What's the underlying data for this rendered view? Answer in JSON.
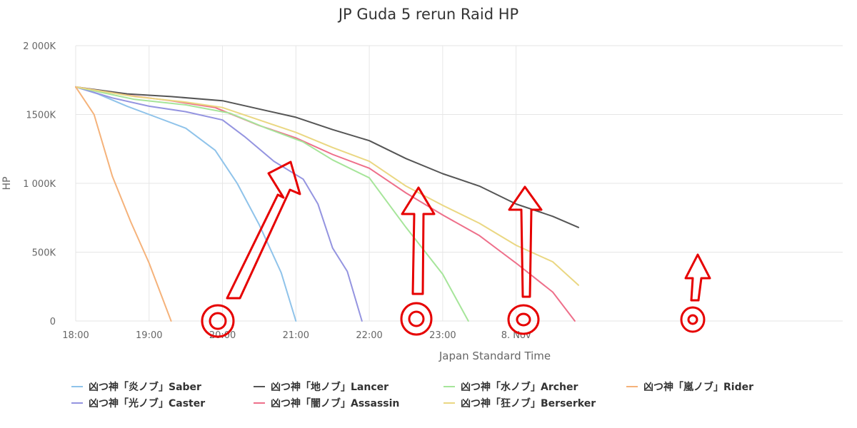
{
  "chart_data": {
    "type": "line",
    "title": "JP Guda 5 rerun Raid HP",
    "xlabel": "Japan Standard Time",
    "ylabel": "HP",
    "ylim": [
      0,
      2000000
    ],
    "xlim": [
      18.0,
      28.45
    ],
    "yticks": [
      {
        "value": 0,
        "label": "0"
      },
      {
        "value": 500000,
        "label": "500K"
      },
      {
        "value": 1000000,
        "label": "1 000K"
      },
      {
        "value": 1500000,
        "label": "1500K"
      },
      {
        "value": 2000000,
        "label": "2 000K"
      }
    ],
    "xticks": [
      {
        "value": 18,
        "label": "18:00"
      },
      {
        "value": 19,
        "label": "19:00"
      },
      {
        "value": 20,
        "label": "20:00"
      },
      {
        "value": 21,
        "label": "21:00"
      },
      {
        "value": 22,
        "label": "22:00"
      },
      {
        "value": 23,
        "label": "23:00"
      },
      {
        "value": 24,
        "label": "8. Nov"
      }
    ],
    "grid": true,
    "legend_position": "bottom",
    "series": [
      {
        "name": "凶つ神「炎ノブ」Saber",
        "color": "#8fc3ea",
        "points": [
          [
            18.0,
            1700000
          ],
          [
            18.3,
            1650000
          ],
          [
            18.7,
            1560000
          ],
          [
            19.0,
            1500000
          ],
          [
            19.5,
            1400000
          ],
          [
            19.9,
            1240000
          ],
          [
            20.2,
            1000000
          ],
          [
            20.5,
            700000
          ],
          [
            20.8,
            350000
          ],
          [
            21.0,
            0
          ]
        ]
      },
      {
        "name": "凶つ神「光ノブ」Caster",
        "color": "#9494e0",
        "points": [
          [
            18.0,
            1700000
          ],
          [
            18.5,
            1620000
          ],
          [
            19.0,
            1560000
          ],
          [
            19.5,
            1520000
          ],
          [
            20.0,
            1460000
          ],
          [
            20.3,
            1340000
          ],
          [
            20.7,
            1160000
          ],
          [
            21.1,
            1030000
          ],
          [
            21.3,
            850000
          ],
          [
            21.5,
            530000
          ],
          [
            21.7,
            360000
          ],
          [
            21.9,
            0
          ]
        ]
      },
      {
        "name": "凶つ神「地ノブ」Lancer",
        "color": "#555555",
        "points": [
          [
            18.0,
            1700000
          ],
          [
            18.7,
            1650000
          ],
          [
            19.3,
            1630000
          ],
          [
            20.0,
            1600000
          ],
          [
            20.5,
            1540000
          ],
          [
            21.0,
            1480000
          ],
          [
            21.5,
            1390000
          ],
          [
            22.0,
            1310000
          ],
          [
            22.5,
            1180000
          ],
          [
            23.0,
            1070000
          ],
          [
            23.5,
            980000
          ],
          [
            24.0,
            850000
          ],
          [
            24.5,
            760000
          ],
          [
            24.85,
            680000
          ]
        ]
      },
      {
        "name": "凶つ神「闇ノブ」Assassin",
        "color": "#ee6f8a",
        "points": [
          [
            18.0,
            1700000
          ],
          [
            18.7,
            1640000
          ],
          [
            19.3,
            1600000
          ],
          [
            19.9,
            1550000
          ],
          [
            20.5,
            1420000
          ],
          [
            21.0,
            1330000
          ],
          [
            21.5,
            1210000
          ],
          [
            22.0,
            1110000
          ],
          [
            22.5,
            930000
          ],
          [
            23.0,
            770000
          ],
          [
            23.5,
            620000
          ],
          [
            23.8,
            500000
          ],
          [
            24.0,
            420000
          ],
          [
            24.5,
            210000
          ],
          [
            24.8,
            0
          ]
        ]
      },
      {
        "name": "凶つ神「水ノブ」Archer",
        "color": "#a6e59a",
        "points": [
          [
            18.0,
            1700000
          ],
          [
            18.8,
            1610000
          ],
          [
            19.5,
            1570000
          ],
          [
            20.1,
            1510000
          ],
          [
            20.6,
            1400000
          ],
          [
            21.1,
            1300000
          ],
          [
            21.5,
            1170000
          ],
          [
            22.0,
            1040000
          ],
          [
            22.5,
            680000
          ],
          [
            23.0,
            340000
          ],
          [
            23.35,
            0
          ]
        ]
      },
      {
        "name": "凶つ神「狂ノブ」Berserker",
        "color": "#ead782",
        "points": [
          [
            18.0,
            1700000
          ],
          [
            18.8,
            1630000
          ],
          [
            19.5,
            1590000
          ],
          [
            20.0,
            1550000
          ],
          [
            20.5,
            1460000
          ],
          [
            21.0,
            1370000
          ],
          [
            21.5,
            1260000
          ],
          [
            22.0,
            1160000
          ],
          [
            22.5,
            980000
          ],
          [
            23.0,
            840000
          ],
          [
            23.5,
            710000
          ],
          [
            24.0,
            550000
          ],
          [
            24.5,
            430000
          ],
          [
            24.85,
            260000
          ]
        ]
      },
      {
        "name": "凶つ神「嵐ノブ」Rider",
        "color": "#f5b27a",
        "points": [
          [
            18.0,
            1700000
          ],
          [
            18.25,
            1500000
          ],
          [
            18.5,
            1050000
          ],
          [
            18.75,
            720000
          ],
          [
            19.0,
            420000
          ],
          [
            19.3,
            0
          ]
        ]
      }
    ]
  }
}
